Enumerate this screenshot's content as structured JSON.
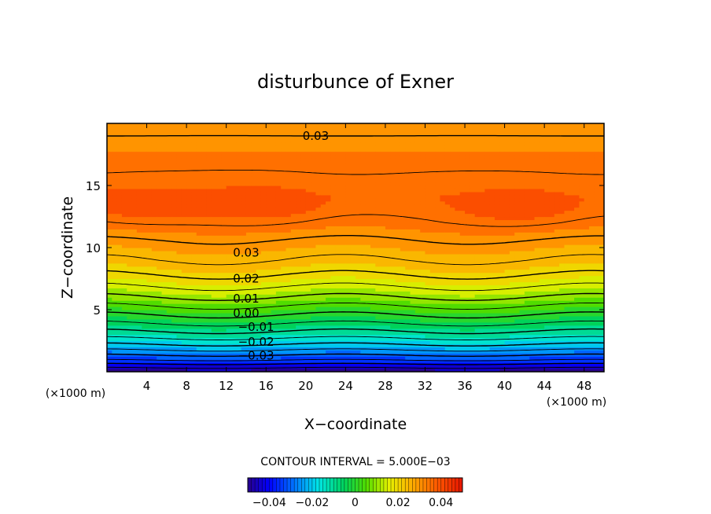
{
  "chart_data": {
    "type": "heatmap",
    "title": "disturbunce of Exner",
    "xlabel": "X−coordinate",
    "ylabel": "Z−coordinate",
    "x_unit_left": "(×1000 m)",
    "x_unit_right": "(×1000 m)",
    "xlim": [
      0,
      50
    ],
    "ylim": [
      0,
      20
    ],
    "x_ticks": [
      4,
      8,
      12,
      16,
      20,
      24,
      28,
      32,
      36,
      40,
      44,
      48
    ],
    "x_tick_labels": [
      "4",
      "8",
      "12",
      "16",
      "20",
      "24",
      "28",
      "32",
      "36",
      "40",
      "44",
      "48"
    ],
    "y_ticks": [
      5,
      10,
      15
    ],
    "y_tick_labels": [
      "5",
      "10",
      "15"
    ],
    "contour_interval_text": "CONTOUR INTERVAL = 5.000E−03",
    "contour_interval": 0.005,
    "contour_labels": [
      {
        "text": "0.03",
        "x": 21,
        "z": 19.0
      },
      {
        "text": "0.03",
        "x": 14,
        "z": 9.6
      },
      {
        "text": "0.02",
        "x": 14,
        "z": 7.5
      },
      {
        "text": "0.01",
        "x": 14,
        "z": 5.9
      },
      {
        "text": "0.00",
        "x": 14,
        "z": 4.7
      },
      {
        "text": "−0.01",
        "x": 15,
        "z": 3.6
      },
      {
        "text": "−0.02",
        "x": 15,
        "z": 2.4
      },
      {
        "text": "−0.03",
        "x": 15,
        "z": 1.3
      }
    ],
    "colorbar": {
      "range": [
        -0.05,
        0.05
      ],
      "ticks": [
        -0.04,
        -0.02,
        0,
        0.02,
        0.04
      ],
      "tick_labels": [
        "−0.04",
        "−0.02",
        "0",
        "0.02",
        "0.04"
      ]
    },
    "field_profile": {
      "z": [
        0,
        1,
        2,
        3,
        4,
        5,
        6,
        7,
        8,
        9,
        10,
        11,
        12,
        13,
        14,
        15,
        16,
        17,
        18,
        19,
        20
      ],
      "value": [
        -0.05,
        -0.034,
        -0.022,
        -0.012,
        -0.004,
        0.003,
        0.01,
        0.016,
        0.021,
        0.025,
        0.028,
        0.031,
        0.034,
        0.036,
        0.037,
        0.036,
        0.035,
        0.034,
        0.032,
        0.03,
        0.028
      ]
    },
    "maxima": [
      {
        "x": 3,
        "z": 13.3
      },
      {
        "x": 16,
        "z": 13.4
      },
      {
        "x": 42,
        "z": 13.1
      }
    ]
  }
}
